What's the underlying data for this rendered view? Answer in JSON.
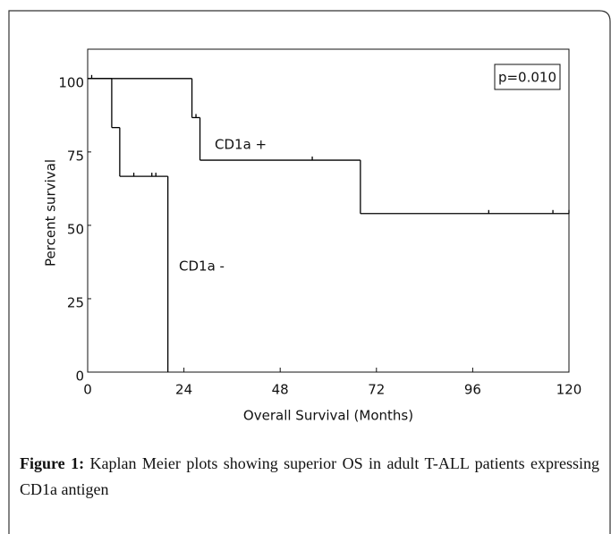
{
  "chart_data": {
    "type": "km",
    "xlabel": "Overall Survival (Months)",
    "ylabel": "Percent survival",
    "xlim": [
      0,
      120
    ],
    "xticks": [
      0,
      24,
      48,
      72,
      96,
      120
    ],
    "ylim": [
      0,
      110
    ],
    "yticks": [
      0,
      25,
      50,
      75,
      100
    ],
    "annotation": "p=0.010",
    "series": [
      {
        "name": "CD1a +",
        "color": "#000000",
        "x": [
          0,
          26,
          28,
          68,
          120
        ],
        "values": [
          100,
          86.7,
          72.2,
          54,
          54
        ],
        "censored_x": [
          1,
          27,
          56,
          100,
          116,
          120
        ],
        "censored_y": [
          100,
          86.7,
          72.2,
          54,
          54,
          54
        ]
      },
      {
        "name": "CD1a -",
        "color": "#000000",
        "x": [
          0,
          6,
          8,
          20
        ],
        "values": [
          100,
          83.3,
          66.7,
          0
        ],
        "censored_x": [
          11.5,
          16,
          17
        ],
        "censored_y": [
          66.7,
          66.7,
          66.7
        ]
      }
    ]
  },
  "caption": {
    "label": "Figure 1:",
    "text": "Kaplan Meier plots showing superior OS in adult T-ALL patients expressing CD1a antigen"
  }
}
